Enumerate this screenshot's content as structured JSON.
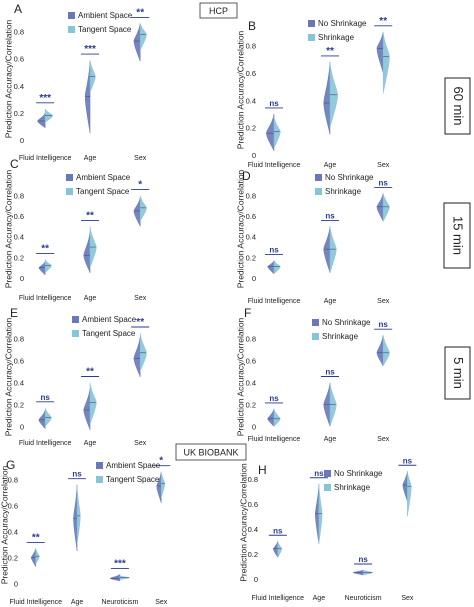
{
  "headers": {
    "hcp": "HCP",
    "ukb": "UK BIOBANK",
    "duration_60": "60 min",
    "duration_15": "15 min",
    "duration_5": "5 min"
  },
  "colors": {
    "dark_series": "#6878b8",
    "light_series": "#86c4d8",
    "sig_marker": "#2a3a8e"
  },
  "chart_data": [
    {
      "panel": "A",
      "type": "violin",
      "ylabel": "Prediction Accuracy/Correlation",
      "ylim": [
        0,
        0.9
      ],
      "yticks": [
        "0",
        "0.2",
        "0.4",
        "0.6",
        "0.8"
      ],
      "categories": [
        "Fluid Intelligence",
        "Age",
        "Sex"
      ],
      "legend": [
        "Ambient Space",
        "Tangent Space"
      ],
      "series": [
        {
          "name": "Ambient Space",
          "values": [
            {
              "lo": 0.09,
              "hi": 0.2,
              "med": 0.14,
              "w": 0.55
            },
            {
              "lo": 0.05,
              "hi": 0.58,
              "med": 0.32,
              "w": 0.35
            },
            {
              "lo": 0.58,
              "hi": 0.86,
              "med": 0.73,
              "w": 0.45
            }
          ]
        },
        {
          "name": "Tangent Space",
          "values": [
            {
              "lo": 0.13,
              "hi": 0.23,
              "med": 0.18,
              "w": 0.55
            },
            {
              "lo": 0.35,
              "hi": 0.59,
              "med": 0.47,
              "w": 0.38
            },
            {
              "lo": 0.66,
              "hi": 0.86,
              "med": 0.78,
              "w": 0.45
            }
          ]
        }
      ],
      "sig": [
        "***",
        "***",
        "**"
      ]
    },
    {
      "panel": "B",
      "type": "violin",
      "ylabel": "Prediction Accuracy/Correlation",
      "ylim": [
        0,
        0.95
      ],
      "yticks": [
        "0",
        "0.2",
        "0.4",
        "0.6",
        "0.8"
      ],
      "categories": [
        "Fluid Intelligence",
        "Age",
        "Sex"
      ],
      "legend": [
        "No Shrinkage",
        "Shrinkage"
      ],
      "series": [
        {
          "name": "No Shrinkage",
          "values": [
            {
              "lo": 0.03,
              "hi": 0.3,
              "med": 0.16,
              "w": 0.55
            },
            {
              "lo": 0.15,
              "hi": 0.68,
              "med": 0.38,
              "w": 0.45
            },
            {
              "lo": 0.6,
              "hi": 0.9,
              "med": 0.78,
              "w": 0.45
            }
          ]
        },
        {
          "name": "Shrinkage",
          "values": [
            {
              "lo": 0.05,
              "hi": 0.28,
              "med": 0.17,
              "w": 0.45
            },
            {
              "lo": 0.2,
              "hi": 0.68,
              "med": 0.44,
              "w": 0.55
            },
            {
              "lo": 0.45,
              "hi": 0.9,
              "med": 0.72,
              "w": 0.45
            }
          ]
        }
      ],
      "sig": [
        "ns",
        "**",
        "**"
      ]
    },
    {
      "panel": "C",
      "type": "violin",
      "ylabel": "Prediction Accuracy/Correlation",
      "ylim": [
        0,
        0.95
      ],
      "yticks": [
        "0",
        "0.2",
        "0.4",
        "0.6",
        "0.8"
      ],
      "categories": [
        "Fluid Intelligence",
        "Age",
        "Sex"
      ],
      "legend": [
        "Ambient Space",
        "Tangent Space"
      ],
      "series": [
        {
          "name": "Ambient Space",
          "values": [
            {
              "lo": 0.03,
              "hi": 0.16,
              "med": 0.1,
              "w": 0.45
            },
            {
              "lo": 0.05,
              "hi": 0.45,
              "med": 0.22,
              "w": 0.45
            },
            {
              "lo": 0.5,
              "hi": 0.78,
              "med": 0.65,
              "w": 0.45
            }
          ]
        },
        {
          "name": "Tangent Space",
          "values": [
            {
              "lo": 0.05,
              "hi": 0.18,
              "med": 0.12,
              "w": 0.45
            },
            {
              "lo": 0.1,
              "hi": 0.5,
              "med": 0.3,
              "w": 0.45
            },
            {
              "lo": 0.55,
              "hi": 0.8,
              "med": 0.68,
              "w": 0.45
            }
          ]
        }
      ],
      "sig": [
        "**",
        "**",
        "*"
      ]
    },
    {
      "panel": "D",
      "type": "violin",
      "ylabel": "Prediction Accuracy/Correlation",
      "ylim": [
        0,
        0.95
      ],
      "yticks": [
        "0",
        "0.2",
        "0.4",
        "0.6",
        "0.8"
      ],
      "categories": [
        "Fluid Intelligence",
        "Age",
        "Sex"
      ],
      "legend": [
        "No Shrinkage",
        "Shrinkage"
      ],
      "series": [
        {
          "name": "No Shrinkage",
          "values": [
            {
              "lo": 0.04,
              "hi": 0.17,
              "med": 0.11,
              "w": 0.45
            },
            {
              "lo": 0.05,
              "hi": 0.5,
              "med": 0.28,
              "w": 0.45
            },
            {
              "lo": 0.55,
              "hi": 0.82,
              "med": 0.69,
              "w": 0.45
            }
          ]
        },
        {
          "name": "Shrinkage",
          "values": [
            {
              "lo": 0.04,
              "hi": 0.17,
              "med": 0.11,
              "w": 0.45
            },
            {
              "lo": 0.05,
              "hi": 0.5,
              "med": 0.28,
              "w": 0.45
            },
            {
              "lo": 0.55,
              "hi": 0.82,
              "med": 0.69,
              "w": 0.45
            }
          ]
        }
      ],
      "sig": [
        "ns",
        "ns",
        "ns"
      ]
    },
    {
      "panel": "E",
      "type": "violin",
      "ylabel": "Prediction Accuracy/Correlation",
      "ylim": [
        -0.05,
        0.95
      ],
      "yticks": [
        "0",
        "0.2",
        "0.4",
        "0.6",
        "0.8"
      ],
      "categories": [
        "Fluid Intelligence",
        "Age",
        "Sex"
      ],
      "legend": [
        "Ambient Space",
        "Tangent Space"
      ],
      "series": [
        {
          "name": "Ambient Space",
          "values": [
            {
              "lo": -0.02,
              "hi": 0.15,
              "med": 0.06,
              "w": 0.45
            },
            {
              "lo": -0.03,
              "hi": 0.35,
              "med": 0.15,
              "w": 0.45
            },
            {
              "lo": 0.45,
              "hi": 0.82,
              "med": 0.62,
              "w": 0.45
            }
          ]
        },
        {
          "name": "Tangent Space",
          "values": [
            {
              "lo": 0.0,
              "hi": 0.17,
              "med": 0.08,
              "w": 0.45
            },
            {
              "lo": 0.02,
              "hi": 0.4,
              "med": 0.22,
              "w": 0.45
            },
            {
              "lo": 0.5,
              "hi": 0.85,
              "med": 0.67,
              "w": 0.45
            }
          ]
        }
      ],
      "sig": [
        "ns",
        "**",
        "**"
      ]
    },
    {
      "panel": "F",
      "type": "violin",
      "ylabel": "Prediction Accuracy/Correlation",
      "ylim": [
        -0.05,
        0.95
      ],
      "yticks": [
        "0",
        "0.2",
        "0.4",
        "0.6",
        "0.8"
      ],
      "categories": [
        "Fluid Intelligence",
        "Age",
        "Sex"
      ],
      "legend": [
        "No Shrinkage",
        "Shrinkage"
      ],
      "series": [
        {
          "name": "No Shrinkage",
          "values": [
            {
              "lo": 0.0,
              "hi": 0.16,
              "med": 0.07,
              "w": 0.45
            },
            {
              "lo": 0.0,
              "hi": 0.4,
              "med": 0.2,
              "w": 0.45
            },
            {
              "lo": 0.55,
              "hi": 0.83,
              "med": 0.67,
              "w": 0.45
            }
          ]
        },
        {
          "name": "Shrinkage",
          "values": [
            {
              "lo": 0.0,
              "hi": 0.16,
              "med": 0.07,
              "w": 0.45
            },
            {
              "lo": 0.0,
              "hi": 0.4,
              "med": 0.2,
              "w": 0.45
            },
            {
              "lo": 0.55,
              "hi": 0.83,
              "med": 0.67,
              "w": 0.45
            }
          ]
        }
      ],
      "sig": [
        "ns",
        "ns",
        "ns"
      ]
    },
    {
      "panel": "G",
      "type": "violin",
      "ylabel": "Prediction Accuracy/Correlation",
      "ylim": [
        -0.05,
        0.95
      ],
      "yticks": [
        "0",
        "0.2",
        "0.4",
        "0.6",
        "0.8"
      ],
      "categories": [
        "Fluid Intelligence",
        "Age",
        "Neuroticism",
        "Sex"
      ],
      "legend": [
        "Ambient Space",
        "Tangent Space"
      ],
      "series": [
        {
          "name": "Ambient Space",
          "values": [
            {
              "lo": 0.13,
              "hi": 0.27,
              "med": 0.2,
              "w": 0.25
            },
            {
              "lo": 0.25,
              "hi": 0.76,
              "med": 0.5,
              "w": 0.2
            },
            {
              "lo": 0.02,
              "hi": 0.07,
              "med": 0.04,
              "w": 0.55
            },
            {
              "lo": 0.62,
              "hi": 0.86,
              "med": 0.75,
              "w": 0.25
            }
          ]
        },
        {
          "name": "Tangent Space",
          "values": [
            {
              "lo": 0.15,
              "hi": 0.27,
              "med": 0.21,
              "w": 0.2
            },
            {
              "lo": 0.3,
              "hi": 0.76,
              "med": 0.52,
              "w": 0.18
            },
            {
              "lo": 0.03,
              "hi": 0.06,
              "med": 0.045,
              "w": 0.55
            },
            {
              "lo": 0.66,
              "hi": 0.86,
              "med": 0.77,
              "w": 0.2
            }
          ]
        }
      ],
      "sig": [
        "**",
        "ns",
        "***",
        "*"
      ]
    },
    {
      "panel": "H",
      "type": "violin",
      "ylabel": "Prediction Accuracy/Correlation",
      "ylim": [
        -0.05,
        0.95
      ],
      "yticks": [
        "0",
        "0.2",
        "0.4",
        "0.6",
        "0.8"
      ],
      "categories": [
        "Fluid Intelligence",
        "Age",
        "Neuroticism",
        "Sex"
      ],
      "legend": [
        "No Shrinkage",
        "Shrinkage"
      ],
      "series": [
        {
          "name": "No Shrinkage",
          "values": [
            {
              "lo": 0.17,
              "hi": 0.3,
              "med": 0.24,
              "w": 0.25
            },
            {
              "lo": 0.28,
              "hi": 0.76,
              "med": 0.52,
              "w": 0.2
            },
            {
              "lo": 0.03,
              "hi": 0.07,
              "med": 0.05,
              "w": 0.55
            },
            {
              "lo": 0.62,
              "hi": 0.86,
              "med": 0.75,
              "w": 0.25
            }
          ]
        },
        {
          "name": "Shrinkage",
          "values": [
            {
              "lo": 0.17,
              "hi": 0.3,
              "med": 0.24,
              "w": 0.22
            },
            {
              "lo": 0.28,
              "hi": 0.76,
              "med": 0.52,
              "w": 0.18
            },
            {
              "lo": 0.03,
              "hi": 0.07,
              "med": 0.05,
              "w": 0.55
            },
            {
              "lo": 0.5,
              "hi": 0.86,
              "med": 0.74,
              "w": 0.22
            }
          ]
        }
      ],
      "sig": [
        "ns",
        "ns",
        "ns",
        "ns"
      ]
    }
  ]
}
